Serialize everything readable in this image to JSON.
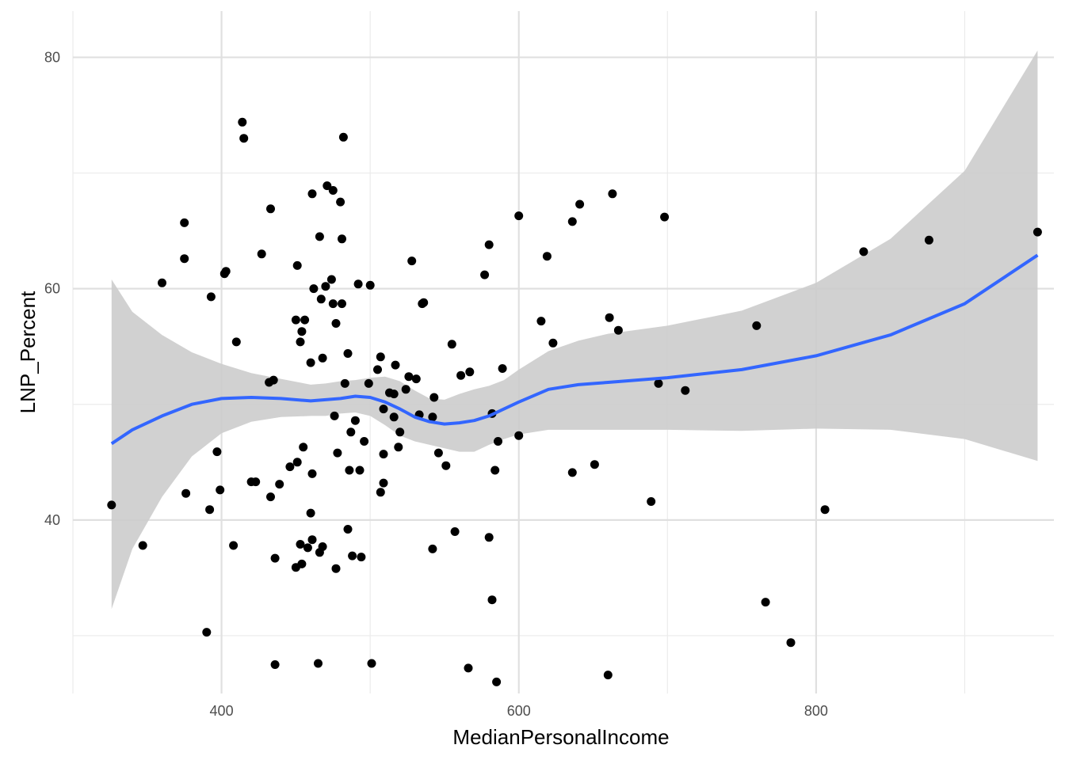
{
  "chart_data": {
    "type": "scatter",
    "xlabel": "MedianPersonalIncome",
    "ylabel": "LNP_Percent",
    "xlim": [
      300,
      960
    ],
    "ylim": [
      25,
      84
    ],
    "x_ticks": [
      400,
      600,
      800
    ],
    "y_ticks": [
      40,
      60,
      80
    ],
    "x_tick_labels": [
      "400",
      "600",
      "800"
    ],
    "y_tick_labels": [
      "40",
      "60",
      "80"
    ],
    "grid": true,
    "points": [
      {
        "x": 326,
        "y": 41.3
      },
      {
        "x": 347,
        "y": 37.8
      },
      {
        "x": 360,
        "y": 60.5
      },
      {
        "x": 375,
        "y": 65.7
      },
      {
        "x": 375,
        "y": 62.6
      },
      {
        "x": 376,
        "y": 42.3
      },
      {
        "x": 390,
        "y": 30.3
      },
      {
        "x": 392,
        "y": 40.9
      },
      {
        "x": 393,
        "y": 59.3
      },
      {
        "x": 397,
        "y": 45.9
      },
      {
        "x": 399,
        "y": 42.6
      },
      {
        "x": 402,
        "y": 61.3
      },
      {
        "x": 403,
        "y": 61.5
      },
      {
        "x": 408,
        "y": 37.8
      },
      {
        "x": 410,
        "y": 55.4
      },
      {
        "x": 414,
        "y": 74.4
      },
      {
        "x": 415,
        "y": 73.0
      },
      {
        "x": 420,
        "y": 43.3
      },
      {
        "x": 423,
        "y": 43.3
      },
      {
        "x": 427,
        "y": 63.0
      },
      {
        "x": 432,
        "y": 51.9
      },
      {
        "x": 433,
        "y": 66.9
      },
      {
        "x": 433,
        "y": 42.0
      },
      {
        "x": 435,
        "y": 52.1
      },
      {
        "x": 436,
        "y": 36.7
      },
      {
        "x": 436,
        "y": 27.5
      },
      {
        "x": 439,
        "y": 43.1
      },
      {
        "x": 446,
        "y": 44.6
      },
      {
        "x": 450,
        "y": 35.9
      },
      {
        "x": 450,
        "y": 57.3
      },
      {
        "x": 451,
        "y": 45.0
      },
      {
        "x": 451,
        "y": 62.0
      },
      {
        "x": 453,
        "y": 37.9
      },
      {
        "x": 453,
        "y": 55.4
      },
      {
        "x": 454,
        "y": 36.2
      },
      {
        "x": 454,
        "y": 56.3
      },
      {
        "x": 455,
        "y": 46.3
      },
      {
        "x": 456,
        "y": 57.3
      },
      {
        "x": 458,
        "y": 37.6
      },
      {
        "x": 460,
        "y": 40.6
      },
      {
        "x": 460,
        "y": 53.6
      },
      {
        "x": 461,
        "y": 38.3
      },
      {
        "x": 461,
        "y": 44.0
      },
      {
        "x": 461,
        "y": 68.2
      },
      {
        "x": 462,
        "y": 60.0
      },
      {
        "x": 465,
        "y": 27.6
      },
      {
        "x": 466,
        "y": 64.5
      },
      {
        "x": 466,
        "y": 37.2
      },
      {
        "x": 467,
        "y": 59.1
      },
      {
        "x": 468,
        "y": 37.7
      },
      {
        "x": 468,
        "y": 54.0
      },
      {
        "x": 470,
        "y": 60.2
      },
      {
        "x": 471,
        "y": 68.9
      },
      {
        "x": 474,
        "y": 60.8
      },
      {
        "x": 475,
        "y": 58.7
      },
      {
        "x": 475,
        "y": 68.5
      },
      {
        "x": 476,
        "y": 49.0
      },
      {
        "x": 477,
        "y": 35.8
      },
      {
        "x": 477,
        "y": 57.0
      },
      {
        "x": 478,
        "y": 45.8
      },
      {
        "x": 480,
        "y": 67.5
      },
      {
        "x": 481,
        "y": 64.3
      },
      {
        "x": 481,
        "y": 58.7
      },
      {
        "x": 482,
        "y": 73.1
      },
      {
        "x": 483,
        "y": 51.8
      },
      {
        "x": 485,
        "y": 54.4
      },
      {
        "x": 485,
        "y": 39.2
      },
      {
        "x": 486,
        "y": 44.3
      },
      {
        "x": 487,
        "y": 47.6
      },
      {
        "x": 488,
        "y": 36.9
      },
      {
        "x": 490,
        "y": 48.6
      },
      {
        "x": 492,
        "y": 60.4
      },
      {
        "x": 493,
        "y": 44.3
      },
      {
        "x": 494,
        "y": 36.8
      },
      {
        "x": 496,
        "y": 46.8
      },
      {
        "x": 499,
        "y": 51.8
      },
      {
        "x": 500,
        "y": 60.3
      },
      {
        "x": 501,
        "y": 27.6
      },
      {
        "x": 505,
        "y": 53.0
      },
      {
        "x": 507,
        "y": 54.1
      },
      {
        "x": 507,
        "y": 42.4
      },
      {
        "x": 509,
        "y": 49.6
      },
      {
        "x": 509,
        "y": 43.2
      },
      {
        "x": 509,
        "y": 45.7
      },
      {
        "x": 513,
        "y": 51.0
      },
      {
        "x": 516,
        "y": 50.9
      },
      {
        "x": 516,
        "y": 48.9
      },
      {
        "x": 517,
        "y": 53.4
      },
      {
        "x": 519,
        "y": 46.3
      },
      {
        "x": 520,
        "y": 47.6
      },
      {
        "x": 524,
        "y": 51.3
      },
      {
        "x": 526,
        "y": 52.4
      },
      {
        "x": 528,
        "y": 62.4
      },
      {
        "x": 531,
        "y": 52.2
      },
      {
        "x": 533,
        "y": 49.1
      },
      {
        "x": 535,
        "y": 58.7
      },
      {
        "x": 536,
        "y": 58.8
      },
      {
        "x": 542,
        "y": 48.9
      },
      {
        "x": 542,
        "y": 37.5
      },
      {
        "x": 543,
        "y": 50.6
      },
      {
        "x": 546,
        "y": 45.8
      },
      {
        "x": 551,
        "y": 44.7
      },
      {
        "x": 555,
        "y": 55.2
      },
      {
        "x": 557,
        "y": 39.0
      },
      {
        "x": 561,
        "y": 52.5
      },
      {
        "x": 566,
        "y": 27.2
      },
      {
        "x": 567,
        "y": 52.8
      },
      {
        "x": 577,
        "y": 61.2
      },
      {
        "x": 580,
        "y": 38.5
      },
      {
        "x": 580,
        "y": 63.8
      },
      {
        "x": 582,
        "y": 49.2
      },
      {
        "x": 582,
        "y": 33.1
      },
      {
        "x": 584,
        "y": 44.3
      },
      {
        "x": 585,
        "y": 26.0
      },
      {
        "x": 586,
        "y": 46.8
      },
      {
        "x": 589,
        "y": 53.1
      },
      {
        "x": 600,
        "y": 66.3
      },
      {
        "x": 600,
        "y": 47.3
      },
      {
        "x": 615,
        "y": 57.2
      },
      {
        "x": 619,
        "y": 62.8
      },
      {
        "x": 623,
        "y": 55.3
      },
      {
        "x": 636,
        "y": 65.8
      },
      {
        "x": 636,
        "y": 44.1
      },
      {
        "x": 641,
        "y": 67.3
      },
      {
        "x": 651,
        "y": 44.8
      },
      {
        "x": 660,
        "y": 26.6
      },
      {
        "x": 661,
        "y": 57.5
      },
      {
        "x": 663,
        "y": 68.2
      },
      {
        "x": 667,
        "y": 56.4
      },
      {
        "x": 689,
        "y": 41.6
      },
      {
        "x": 694,
        "y": 51.8
      },
      {
        "x": 698,
        "y": 66.2
      },
      {
        "x": 712,
        "y": 51.2
      },
      {
        "x": 760,
        "y": 56.8
      },
      {
        "x": 766,
        "y": 32.9
      },
      {
        "x": 783,
        "y": 29.4
      },
      {
        "x": 806,
        "y": 40.9
      },
      {
        "x": 832,
        "y": 63.2
      },
      {
        "x": 876,
        "y": 64.2
      },
      {
        "x": 949,
        "y": 64.9
      }
    ],
    "smooth": {
      "color": "#3366ff",
      "band_color": "#cccccc",
      "x": [
        326,
        340,
        360,
        380,
        400,
        420,
        440,
        460,
        470,
        480,
        490,
        500,
        510,
        520,
        530,
        540,
        550,
        560,
        570,
        580,
        590,
        600,
        620,
        640,
        660,
        700,
        750,
        800,
        850,
        900,
        949
      ],
      "y": [
        46.6,
        47.8,
        49.0,
        50.0,
        50.5,
        50.6,
        50.5,
        50.3,
        50.4,
        50.5,
        50.7,
        50.6,
        50.2,
        49.6,
        48.9,
        48.5,
        48.3,
        48.4,
        48.6,
        49.0,
        49.6,
        50.2,
        51.3,
        51.7,
        51.9,
        52.3,
        53.0,
        54.2,
        56.0,
        58.7,
        62.9
      ],
      "lower": [
        32.3,
        37.5,
        42.0,
        45.5,
        47.5,
        48.5,
        48.9,
        49.0,
        49.0,
        49.2,
        49.3,
        49.0,
        48.2,
        47.3,
        46.8,
        46.5,
        46.2,
        45.9,
        45.9,
        46.5,
        47.0,
        47.4,
        47.8,
        47.8,
        47.8,
        47.8,
        47.7,
        47.9,
        47.8,
        47.0,
        45.1
      ],
      "upper": [
        60.8,
        58.0,
        56.0,
        54.5,
        53.5,
        52.7,
        52.2,
        51.7,
        51.8,
        52.0,
        52.1,
        52.3,
        52.4,
        52.0,
        51.2,
        50.5,
        50.4,
        50.9,
        51.3,
        51.6,
        52.1,
        53.0,
        54.6,
        55.5,
        56.1,
        56.8,
        58.1,
        60.5,
        64.3,
        70.2,
        80.6
      ]
    }
  }
}
